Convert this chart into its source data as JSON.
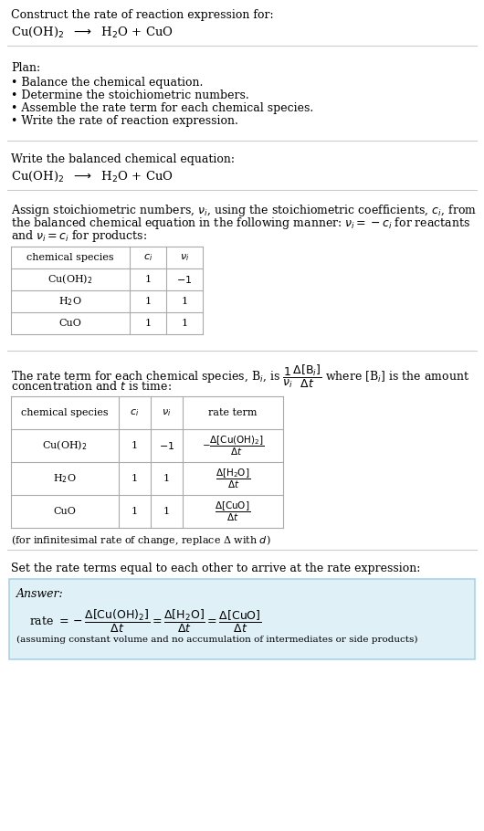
{
  "bg_color": "#ffffff",
  "text_color": "#000000",
  "section1_title": "Construct the rate of reaction expression for:",
  "section1_eq": "Cu(OH)$_2$  $\\longrightarrow$  H$_2$O + CuO",
  "section2_title": "Plan:",
  "section2_bullets": [
    "• Balance the chemical equation.",
    "• Determine the stoichiometric numbers.",
    "• Assemble the rate term for each chemical species.",
    "• Write the rate of reaction expression."
  ],
  "section3_title": "Write the balanced chemical equation:",
  "section3_eq": "Cu(OH)$_2$  $\\longrightarrow$  H$_2$O + CuO",
  "section4_intro_lines": [
    "Assign stoichiometric numbers, $\\nu_i$, using the stoichiometric coefficients, $c_i$, from",
    "the balanced chemical equation in the following manner: $\\nu_i = -c_i$ for reactants",
    "and $\\nu_i = c_i$ for products:"
  ],
  "table1_headers": [
    "chemical species",
    "$c_i$",
    "$\\nu_i$"
  ],
  "table1_rows": [
    [
      "Cu(OH)$_2$",
      "1",
      "$-1$"
    ],
    [
      "H$_2$O",
      "1",
      "1"
    ],
    [
      "CuO",
      "1",
      "1"
    ]
  ],
  "section5_intro_line1": "The rate term for each chemical species, B$_i$, is $\\dfrac{1}{\\nu_i}\\dfrac{\\Delta[\\mathrm{B}_i]}{\\Delta t}$ where [B$_i$] is the amount",
  "section5_intro_line2": "concentration and $t$ is time:",
  "table2_headers": [
    "chemical species",
    "$c_i$",
    "$\\nu_i$",
    "rate term"
  ],
  "table2_rows": [
    [
      "Cu(OH)$_2$",
      "1",
      "$-1$",
      "$-\\dfrac{\\Delta[\\mathrm{Cu(OH)_2}]}{\\Delta t}$"
    ],
    [
      "H$_2$O",
      "1",
      "1",
      "$\\dfrac{\\Delta[\\mathrm{H_2O}]}{\\Delta t}$"
    ],
    [
      "CuO",
      "1",
      "1",
      "$\\dfrac{\\Delta[\\mathrm{CuO}]}{\\Delta t}$"
    ]
  ],
  "infinitesimal_note": "(for infinitesimal rate of change, replace Δ with $d$)",
  "section6_intro": "Set the rate terms equal to each other to arrive at the rate expression:",
  "answer_label": "Answer:",
  "answer_eq": "rate $= -\\dfrac{\\Delta[\\mathrm{Cu(OH)_2}]}{\\Delta t} = \\dfrac{\\Delta[\\mathrm{H_2O}]}{\\Delta t} = \\dfrac{\\Delta[\\mathrm{CuO}]}{\\Delta t}$",
  "answer_note": "(assuming constant volume and no accumulation of intermediates or side products)",
  "answer_box_color": "#dff0f7",
  "answer_box_edge_color": "#a8d4e6",
  "hline_color": "#cccccc",
  "table_line_color": "#aaaaaa"
}
